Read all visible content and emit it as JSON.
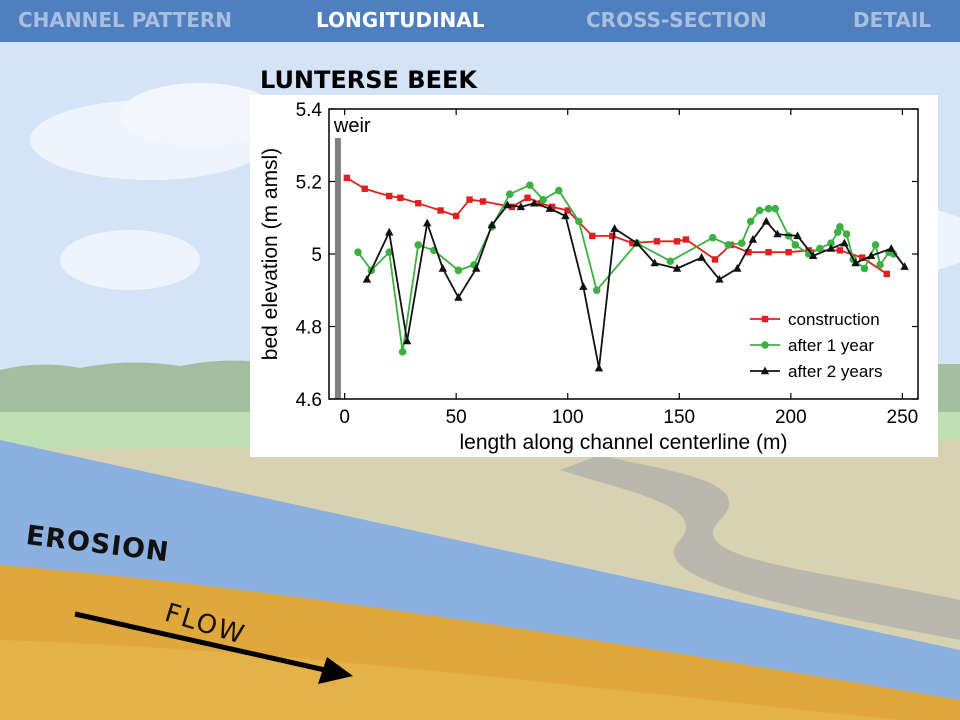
{
  "nav": {
    "tabs": [
      {
        "label": "CHANNEL PATTERN",
        "active": false
      },
      {
        "label": "LONGITUDINAL",
        "active": true
      },
      {
        "label": "CROSS-SECTION",
        "active": false
      },
      {
        "label": "DETAIL",
        "active": false
      }
    ]
  },
  "chart_title": "LUNTERSE BEEK",
  "illustration": {
    "erosion_label": "EROSION",
    "flow_label": "FLOW"
  },
  "colors": {
    "nav_bg": "#4f7fbf",
    "construction": "#e02020",
    "after_1_year": "#3cb043",
    "after_2_years": "#111111",
    "weir": "#808080",
    "water": "#8cb1e0",
    "ground": "#e0a83c"
  },
  "chart_data": {
    "type": "line",
    "xlabel": "length along channel centerline (m)",
    "ylabel": "bed elevation (m amsl)",
    "xlim": [
      -7,
      257
    ],
    "ylim": [
      4.6,
      5.4
    ],
    "xticks": [
      0,
      50,
      100,
      150,
      200,
      250
    ],
    "yticks": [
      4.6,
      4.8,
      5,
      5.2,
      5.4
    ],
    "ytick_labels": [
      "4.6",
      "4.8",
      "5",
      "5.2",
      "5.4"
    ],
    "legend_position": "bottom-right",
    "weir": {
      "x": -3,
      "y_top": 5.32,
      "label": "weir"
    },
    "series": [
      {
        "name": "construction",
        "marker": "square",
        "color": "#e02020",
        "points": [
          [
            1,
            5.21
          ],
          [
            9,
            5.18
          ],
          [
            20,
            5.16
          ],
          [
            25,
            5.155
          ],
          [
            33,
            5.14
          ],
          [
            43,
            5.12
          ],
          [
            50,
            5.105
          ],
          [
            56,
            5.15
          ],
          [
            62,
            5.145
          ],
          [
            75,
            5.13
          ],
          [
            82,
            5.155
          ],
          [
            88,
            5.14
          ],
          [
            93,
            5.13
          ],
          [
            100,
            5.12
          ],
          [
            111,
            5.05
          ],
          [
            120,
            5.05
          ],
          [
            129,
            5.03
          ],
          [
            140,
            5.035
          ],
          [
            149,
            5.035
          ],
          [
            153,
            5.04
          ],
          [
            166,
            4.985
          ],
          [
            173,
            5.025
          ],
          [
            181,
            5.005
          ],
          [
            190,
            5.005
          ],
          [
            199,
            5.005
          ],
          [
            208,
            5.01
          ],
          [
            222,
            5.01
          ],
          [
            232,
            4.99
          ],
          [
            243,
            4.945
          ]
        ]
      },
      {
        "name": "after 1 year",
        "marker": "circle",
        "color": "#3cb043",
        "points": [
          [
            6,
            5.005
          ],
          [
            12,
            4.955
          ],
          [
            20,
            5.005
          ],
          [
            26,
            4.73
          ],
          [
            33,
            5.025
          ],
          [
            40,
            5.01
          ],
          [
            51,
            4.955
          ],
          [
            58,
            4.97
          ],
          [
            66,
            5.075
          ],
          [
            74,
            5.165
          ],
          [
            83,
            5.19
          ],
          [
            89,
            5.15
          ],
          [
            96,
            5.175
          ],
          [
            105,
            5.09
          ],
          [
            113,
            4.9
          ],
          [
            131,
            5.03
          ],
          [
            146,
            4.98
          ],
          [
            165,
            5.045
          ],
          [
            172,
            5.025
          ],
          [
            178,
            5.03
          ],
          [
            182,
            5.09
          ],
          [
            186,
            5.12
          ],
          [
            190,
            5.125
          ],
          [
            193,
            5.125
          ],
          [
            199,
            5.05
          ],
          [
            202,
            5.025
          ],
          [
            208,
            5.0
          ],
          [
            213,
            5.015
          ],
          [
            218,
            5.03
          ],
          [
            221,
            5.06
          ],
          [
            222,
            5.075
          ],
          [
            225,
            5.055
          ],
          [
            228,
            4.985
          ],
          [
            233,
            4.96
          ],
          [
            238,
            5.025
          ],
          [
            240,
            4.97
          ],
          [
            244,
            5.005
          ],
          [
            246,
            5.0
          ]
        ]
      },
      {
        "name": "after 2 years",
        "marker": "triangle",
        "color": "#111111",
        "points": [
          [
            10,
            4.93
          ],
          [
            20,
            5.06
          ],
          [
            28,
            4.76
          ],
          [
            37,
            5.085
          ],
          [
            44,
            4.96
          ],
          [
            51,
            4.88
          ],
          [
            59,
            4.96
          ],
          [
            66,
            5.08
          ],
          [
            73,
            5.135
          ],
          [
            79,
            5.13
          ],
          [
            85,
            5.14
          ],
          [
            92,
            5.125
          ],
          [
            99,
            5.105
          ],
          [
            107,
            4.91
          ],
          [
            114,
            4.685
          ],
          [
            121,
            5.07
          ],
          [
            131,
            5.03
          ],
          [
            139,
            4.975
          ],
          [
            149,
            4.96
          ],
          [
            160,
            4.99
          ],
          [
            168,
            4.93
          ],
          [
            176,
            4.96
          ],
          [
            183,
            5.04
          ],
          [
            189,
            5.09
          ],
          [
            194,
            5.055
          ],
          [
            203,
            5.05
          ],
          [
            210,
            4.995
          ],
          [
            218,
            5.015
          ],
          [
            224,
            5.03
          ],
          [
            229,
            4.975
          ],
          [
            236,
            4.995
          ],
          [
            245,
            5.015
          ],
          [
            251,
            4.965
          ]
        ]
      }
    ]
  }
}
